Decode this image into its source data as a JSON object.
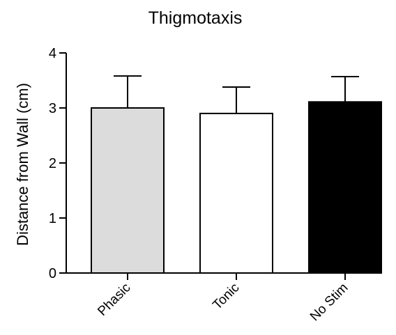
{
  "chart_data": {
    "type": "bar",
    "title": "Thigmotaxis",
    "xlabel": "",
    "ylabel": "Distance from Wall (cm)",
    "categories": [
      "Phasic",
      "Tonic",
      "No Stim"
    ],
    "values": [
      3.0,
      2.9,
      3.11
    ],
    "error_upper": [
      0.58,
      0.48,
      0.46
    ],
    "bar_colors": [
      "#dcdcdc",
      "#ffffff",
      "#000000"
    ],
    "ylim": [
      0,
      4
    ],
    "yticks": [
      0,
      1,
      2,
      3,
      4
    ],
    "ytick_labels": [
      "0",
      "1",
      "2",
      "3",
      "4"
    ],
    "grid": false,
    "legend": "none"
  }
}
